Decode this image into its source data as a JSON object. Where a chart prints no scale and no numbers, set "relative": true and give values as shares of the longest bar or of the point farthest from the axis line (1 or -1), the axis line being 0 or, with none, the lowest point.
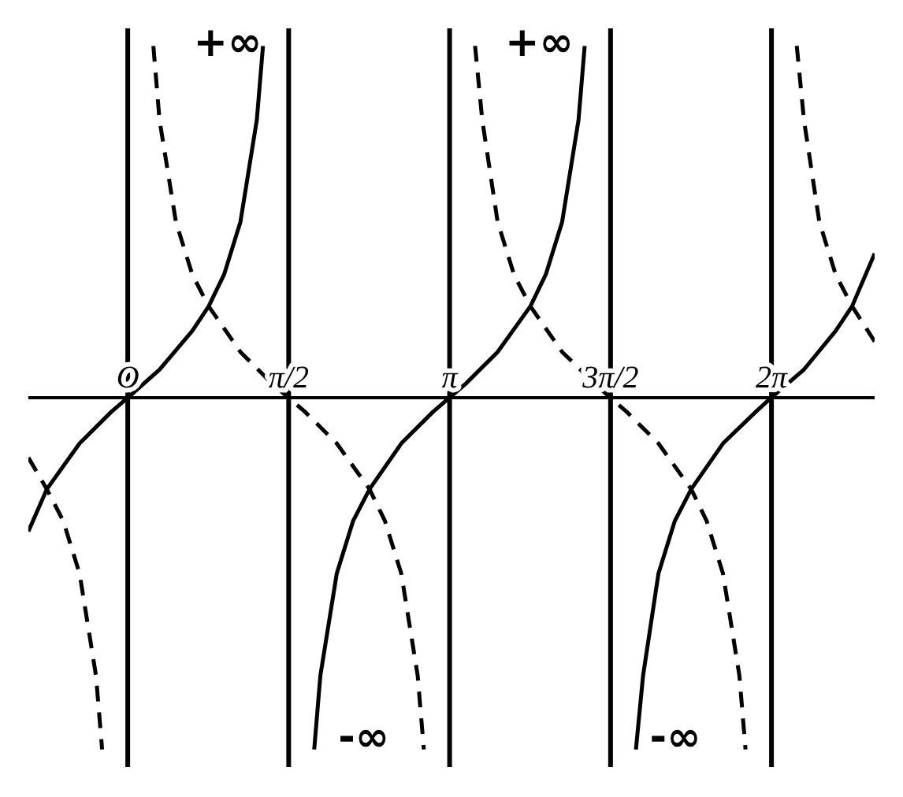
{
  "chart_data": {
    "type": "line",
    "relative": true,
    "marker": "none",
    "grid": false,
    "legend": false,
    "xlim": [
      -0.97,
      7.29
    ],
    "xticks": [
      {
        "value": 0,
        "label": "O"
      },
      {
        "value": 1.5708,
        "label": "π/2"
      },
      {
        "value": 3.1416,
        "label": "π"
      },
      {
        "value": 4.7124,
        "label": "3π/2"
      },
      {
        "value": 6.2832,
        "label": "2π"
      }
    ],
    "series": [
      {
        "color": "#000000",
        "line_style": "solid",
        "x": [
          -0.97,
          -0.79,
          -0.47,
          -0.16,
          0,
          0.31,
          0.63,
          0.79,
          0.94,
          1.1,
          1.26,
          1.32,
          1.57,
          1.82,
          1.88,
          2.04,
          2.2,
          2.36,
          2.67,
          2.98,
          3.14,
          3.3,
          3.61,
          3.93,
          4.08,
          4.24,
          4.4,
          4.46,
          4.71,
          4.96,
          5.03,
          5.18,
          5.34,
          5.5,
          5.81,
          6.13,
          6.28,
          6.6,
          6.91,
          7.07,
          7.29
        ],
        "values": [
          -0.38,
          -0.26,
          -0.13,
          -0.04,
          0,
          0.08,
          0.19,
          0.26,
          0.35,
          0.5,
          0.79,
          1,
          null,
          -1,
          -0.79,
          -0.5,
          -0.35,
          -0.26,
          -0.13,
          -0.04,
          0,
          0.04,
          0.13,
          0.26,
          0.35,
          0.5,
          0.79,
          1,
          null,
          -1,
          -0.79,
          -0.5,
          -0.35,
          -0.26,
          -0.13,
          -0.04,
          0,
          0.08,
          0.19,
          0.26,
          0.41
        ]
      },
      {
        "color": "#000000",
        "line_style": "dashed",
        "x": [
          -0.97,
          -0.79,
          -0.63,
          -0.47,
          -0.31,
          -0.25,
          0,
          0.25,
          0.31,
          0.47,
          0.63,
          0.79,
          1.1,
          1.41,
          1.57,
          1.73,
          2.04,
          2.36,
          2.51,
          2.67,
          2.83,
          2.89,
          3.14,
          3.39,
          3.46,
          3.61,
          3.77,
          3.93,
          4.24,
          4.56,
          4.71,
          4.87,
          5.18,
          5.5,
          5.65,
          5.81,
          5.97,
          6.03,
          6.28,
          6.53,
          6.6,
          6.75,
          6.91,
          7.07,
          7.29
        ],
        "values": [
          -0.17,
          -0.26,
          -0.35,
          -0.5,
          -0.79,
          -1,
          null,
          1,
          0.79,
          0.5,
          0.35,
          0.26,
          0.13,
          0.04,
          0,
          -0.04,
          -0.13,
          -0.26,
          -0.35,
          -0.5,
          -0.79,
          -1,
          null,
          1,
          0.79,
          0.5,
          0.35,
          0.26,
          0.13,
          0.04,
          0,
          -0.04,
          -0.13,
          -0.26,
          -0.35,
          -0.5,
          -0.79,
          -1,
          null,
          1,
          0.79,
          0.5,
          0.35,
          0.26,
          0.16
        ]
      }
    ],
    "ref_lines": [
      {
        "axis": "x",
        "value": 0,
        "color": "#000000"
      },
      {
        "axis": "x",
        "value": 1.5708,
        "color": "#000000"
      },
      {
        "axis": "x",
        "value": 3.1416,
        "color": "#000000"
      },
      {
        "axis": "x",
        "value": 4.7124,
        "color": "#000000"
      },
      {
        "axis": "x",
        "value": 6.2832,
        "color": "#000000"
      }
    ],
    "annotations": [
      "+∞",
      "+∞",
      "-∞",
      "-∞"
    ]
  }
}
